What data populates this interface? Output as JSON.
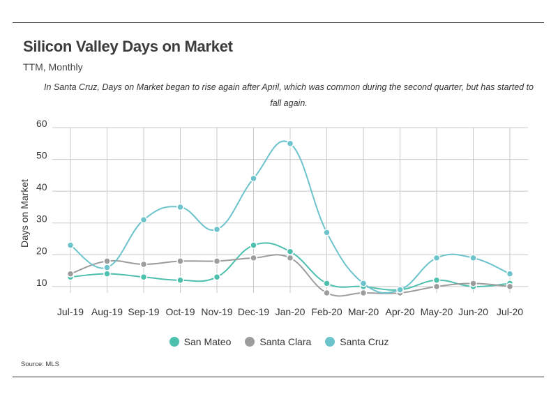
{
  "header": {
    "title": "Silicon Valley Days on Market",
    "subtitle": "TTM, Monthly",
    "note": "In Santa Cruz, Days on Market began to rise again after April, which was common during the second quarter, but has started to fall again."
  },
  "footer": {
    "source": "Source:  MLS"
  },
  "chart_data": {
    "type": "line",
    "title": "Silicon Valley Days on Market",
    "subtitle": "TTM, Monthly",
    "ylabel": "Days on Market",
    "xlabel": "",
    "ylim": [
      8,
      60
    ],
    "yticks": [
      10,
      20,
      30,
      40,
      50,
      60
    ],
    "grid": true,
    "legend_position": "bottom",
    "categories": [
      "Jul-19",
      "Aug-19",
      "Sep-19",
      "Oct-19",
      "Nov-19",
      "Dec-19",
      "Jan-20",
      "Feb-20",
      "Mar-20",
      "Apr-20",
      "May-20",
      "Jun-20",
      "Jul-20"
    ],
    "series": [
      {
        "name": "San Mateo",
        "color": "#4dbfad",
        "values": [
          13,
          14,
          13,
          12,
          13,
          23,
          21,
          11,
          10,
          9,
          12,
          10,
          11
        ]
      },
      {
        "name": "Santa Clara",
        "color": "#9c9c9c",
        "values": [
          14,
          18,
          17,
          18,
          18,
          19,
          19,
          8,
          8,
          8,
          10,
          11,
          10
        ]
      },
      {
        "name": "Santa Cruz",
        "color": "#6cc3cc",
        "values": [
          23,
          16,
          31,
          35,
          28,
          44,
          55,
          27,
          11,
          9,
          19,
          19,
          14
        ]
      }
    ]
  }
}
